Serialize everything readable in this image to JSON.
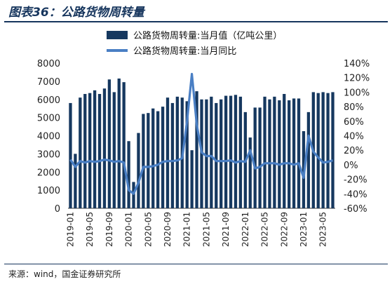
{
  "figure": {
    "title": "图表36：公路货物周转量",
    "source": "来源：wind，国金证券研究所"
  },
  "chart_data": {
    "type": "bar+line",
    "categories": [
      "2019-01",
      "2019-02",
      "2019-03",
      "2019-04",
      "2019-05",
      "2019-06",
      "2019-07",
      "2019-08",
      "2019-09",
      "2019-10",
      "2019-11",
      "2019-12",
      "2020-01",
      "2020-02",
      "2020-03",
      "2020-04",
      "2020-05",
      "2020-06",
      "2020-07",
      "2020-08",
      "2020-09",
      "2020-10",
      "2020-11",
      "2020-12",
      "2021-01",
      "2021-02",
      "2021-03",
      "2021-04",
      "2021-05",
      "2021-06",
      "2021-07",
      "2021-08",
      "2021-09",
      "2021-10",
      "2021-11",
      "2021-12",
      "2022-01",
      "2022-02",
      "2022-03",
      "2022-04",
      "2022-05",
      "2022-06",
      "2022-07",
      "2022-08",
      "2022-09",
      "2022-10",
      "2022-11",
      "2022-12",
      "2023-01",
      "2023-02",
      "2023-03",
      "2023-04",
      "2023-05",
      "2023-06",
      "2023-07"
    ],
    "x_tick_labels": [
      "2019-01",
      "2019-05",
      "2019-09",
      "2020-01",
      "2020-05",
      "2020-09",
      "2021-01",
      "2021-05",
      "2021-09",
      "2022-01",
      "2022-05",
      "2022-09",
      "2023-01",
      "2023-05"
    ],
    "series": [
      {
        "name": "公路货物周转量:当月值（亿吨公里）",
        "type": "bar",
        "axis": "left",
        "color": "#16385f",
        "values": [
          5800,
          3000,
          6100,
          6300,
          6350,
          6500,
          6300,
          6600,
          7100,
          6400,
          7150,
          6950,
          3700,
          1450,
          4150,
          5200,
          5250,
          5500,
          5350,
          5600,
          6100,
          5800,
          6150,
          6100,
          5900,
          3200,
          6450,
          6000,
          6000,
          6150,
          5800,
          6000,
          6200,
          6200,
          6250,
          6150,
          5300,
          3900,
          5550,
          5550,
          6150,
          6000,
          6150,
          5950,
          6300,
          5950,
          6050,
          6050,
          4250,
          5300,
          6400,
          6350,
          6400,
          6350,
          6400
        ]
      },
      {
        "name": "公路货物周转量:当月同比",
        "type": "line",
        "axis": "right",
        "color": "#4a7fc4",
        "values": [
          7,
          -3,
          5,
          3,
          5,
          4,
          5,
          7,
          6,
          4,
          5,
          3,
          -35,
          -40,
          -25,
          -3,
          -3,
          -2,
          0,
          4,
          5,
          5,
          6,
          9,
          60,
          125,
          55,
          17,
          12,
          12,
          5,
          5,
          5,
          6,
          3,
          5,
          4,
          20,
          -5,
          -3,
          2,
          2,
          2,
          0,
          2,
          2,
          0,
          2,
          -18,
          40,
          18,
          10,
          3,
          4,
          6
        ]
      }
    ],
    "y_left": {
      "ylim": [
        0,
        8000
      ],
      "ticks": [
        "0",
        "1000",
        "2000",
        "3000",
        "4000",
        "5000",
        "6000",
        "7000",
        "8000"
      ]
    },
    "y_right": {
      "ylim": [
        -60,
        140
      ],
      "ticks": [
        "-60%",
        "-40%",
        "-20%",
        "0%",
        "20%",
        "40%",
        "60%",
        "80%",
        "100%",
        "120%",
        "140%"
      ]
    },
    "legend": {
      "placement": "top-center",
      "entries": [
        "公路货物周转量:当月值（亿吨公里）",
        "公路货物周转量:当月同比"
      ]
    },
    "grid": false
  }
}
